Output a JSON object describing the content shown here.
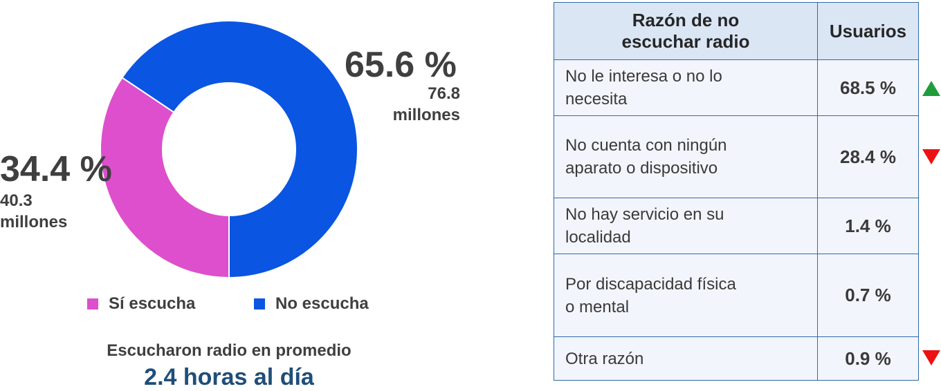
{
  "chart_data": [
    {
      "type": "pie",
      "series": [
        {
          "name": "Sí escucha",
          "value": 34.4,
          "color": "#dd4fcc",
          "pct_label": "34.4 %",
          "count_label": "40.3 millones"
        },
        {
          "name": "No escucha",
          "value": 65.6,
          "color": "#0a55e2",
          "pct_label": "65.6 %",
          "count_label": "76.8 millones"
        }
      ],
      "donut": true
    },
    {
      "type": "table",
      "columns": [
        "Razón de no escuchar radio",
        "Usuarios"
      ],
      "rows": [
        {
          "reason": "No le interesa o no lo necesita",
          "value": "68.5 %",
          "trend": "up"
        },
        {
          "reason": "No cuenta con ningún aparato o dispositivo",
          "value": "28.4 %",
          "trend": "down"
        },
        {
          "reason": "No hay servicio en su localidad",
          "value": "1.4 %",
          "trend": ""
        },
        {
          "reason": "Por discapacidad física o mental",
          "value": "0.7 %",
          "trend": ""
        },
        {
          "reason": "Otra razón",
          "value": "0.9 %",
          "trend": "down"
        }
      ]
    }
  ],
  "donut_labels": {
    "si_pct": "34.4 %",
    "si_count_1": "40.3",
    "si_count_2": "millones",
    "no_pct": "65.6 %",
    "no_count_1": "76.8",
    "no_count_2": "millones"
  },
  "legend": {
    "si": "Sí escucha",
    "no": "No escucha"
  },
  "footer": {
    "line1": "Escucharon radio en promedio",
    "line2": "2.4 horas al día"
  },
  "table": {
    "header_reason": "Razón de no escuchar radio",
    "header_users": "Usuarios",
    "rows": [
      {
        "reason_1": "No le interesa o no lo",
        "reason_2": "necesita",
        "value": "68.5 %"
      },
      {
        "reason_1": "No cuenta con ningún",
        "reason_2": "aparato o dispositivo",
        "value": "28.4 %"
      },
      {
        "reason_1": "No hay servicio en su",
        "reason_2": "localidad",
        "value": "1.4 %"
      },
      {
        "reason_1": "Por discapacidad física",
        "reason_2": "o mental",
        "value": "0.7 %"
      },
      {
        "reason_1": "Otra razón",
        "reason_2": "",
        "value": "0.9 %"
      }
    ]
  },
  "colors": {
    "si": "#dd4fcc",
    "no": "#0a55e2",
    "up": "#1e9e3a",
    "down": "#ee1111",
    "footer_accent": "#1f4e79"
  }
}
